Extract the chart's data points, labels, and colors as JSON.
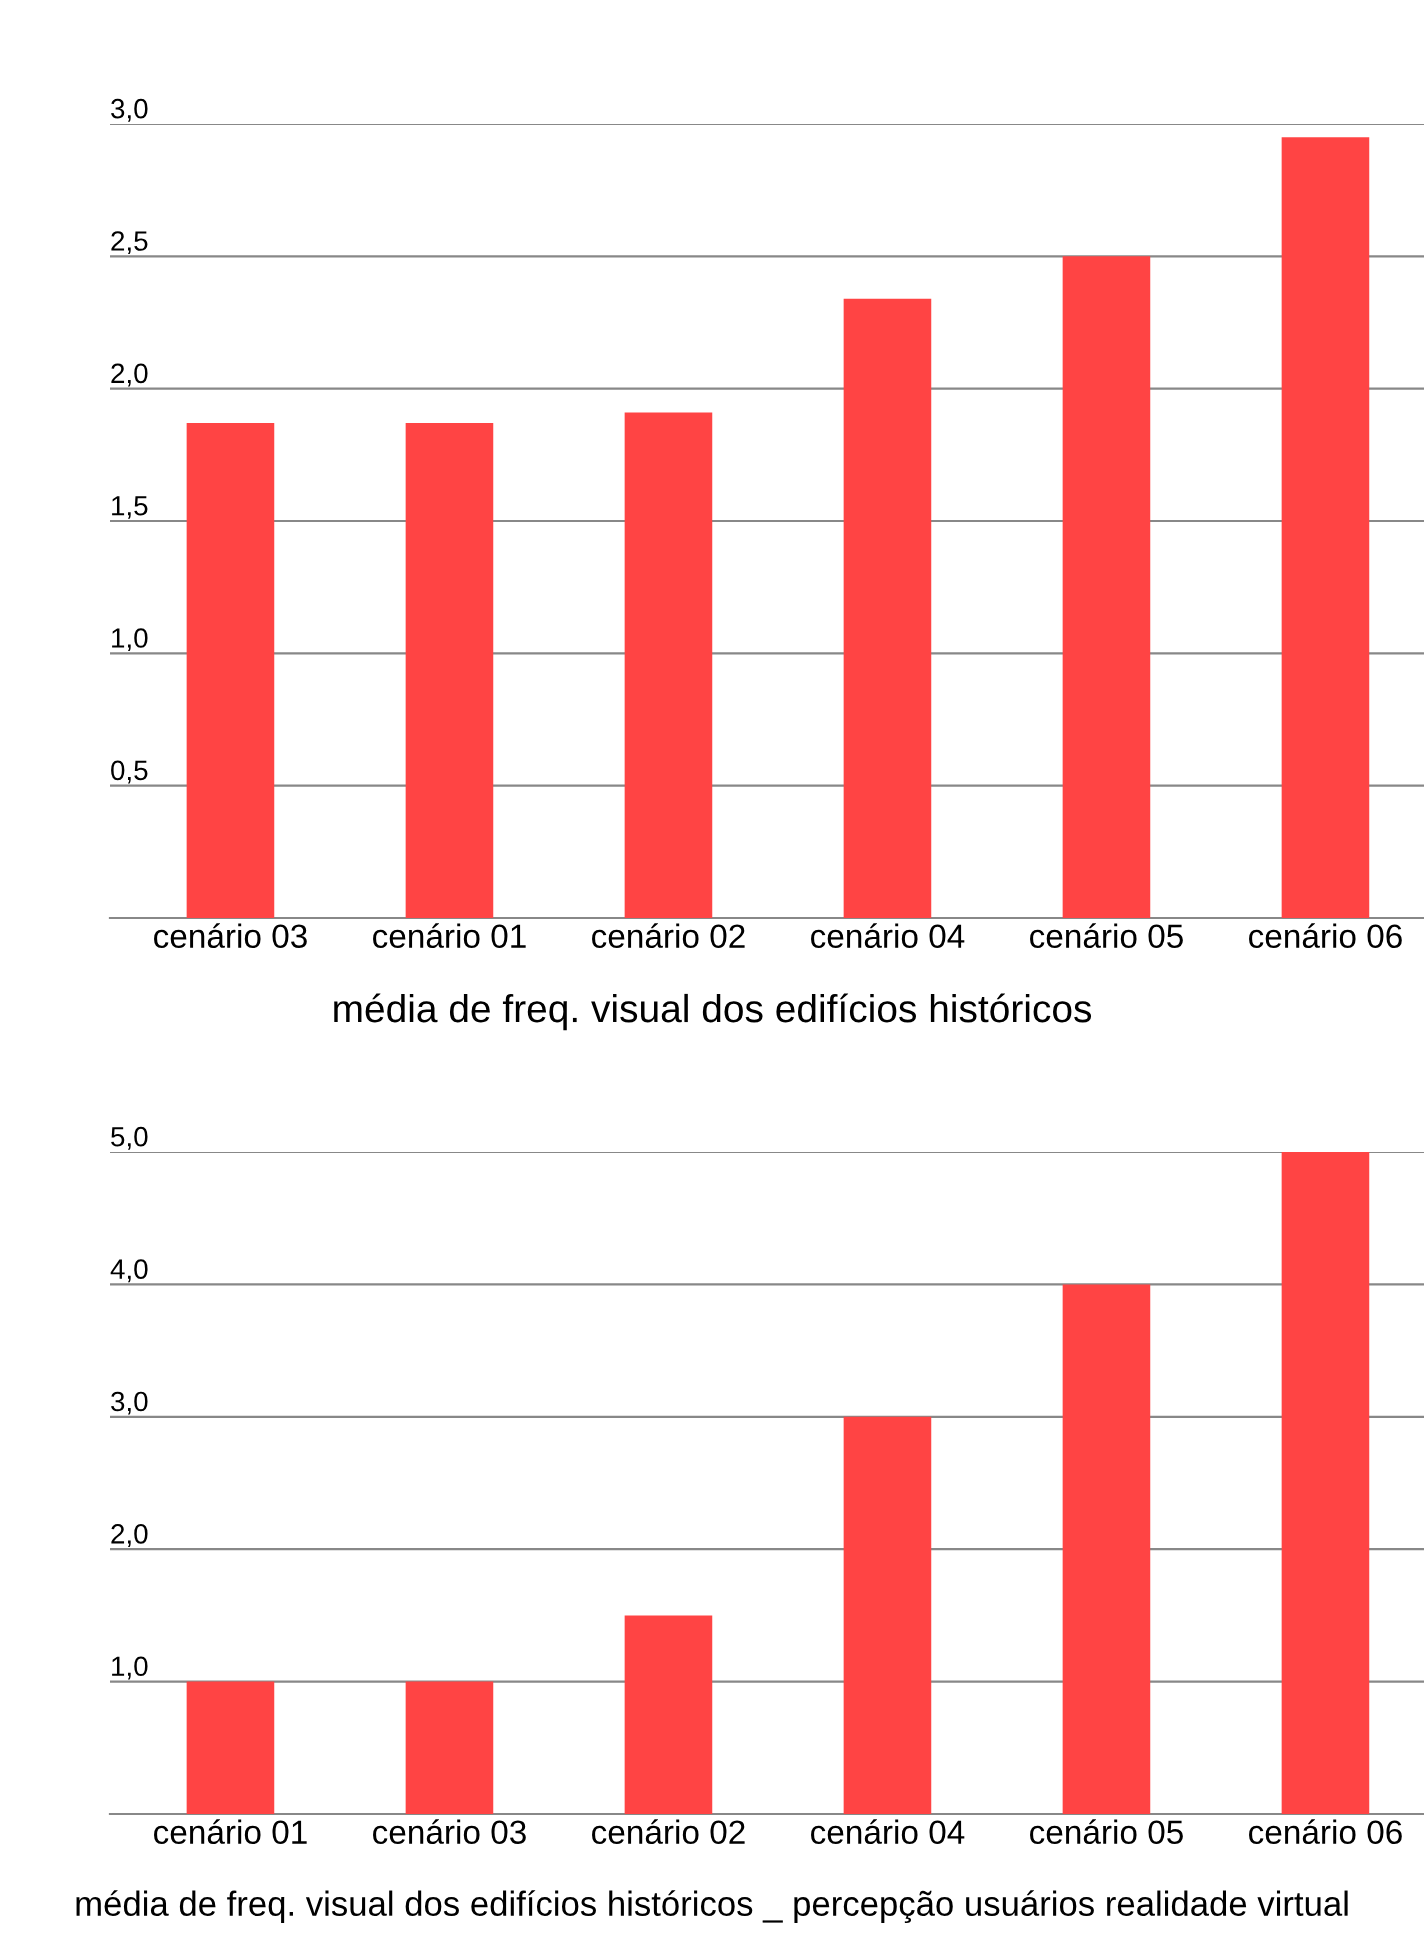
{
  "chart_data": [
    {
      "type": "bar",
      "categories": [
        "cenário 03",
        "cenário 01",
        "cenário 02",
        "cenário 04",
        "cenário 05",
        "cenário 06"
      ],
      "values": [
        1.87,
        1.87,
        1.91,
        2.34,
        2.5,
        2.95
      ],
      "color": "#ff4444",
      "xlabel": "média de freq. visual dos edifícios históricos",
      "ylim": [
        0,
        3.0
      ],
      "yticks": [
        {
          "value": 0.5,
          "label": "0,5"
        },
        {
          "value": 1.0,
          "label": "1,0"
        },
        {
          "value": 1.5,
          "label": "1,5"
        },
        {
          "value": 2.0,
          "label": "2,0"
        },
        {
          "value": 2.5,
          "label": "2,5"
        },
        {
          "value": 3.0,
          "label": "3,0"
        }
      ],
      "grid": "y",
      "legend": false
    },
    {
      "type": "bar",
      "categories": [
        "cenário 01",
        "cenário 03",
        "cenário 02",
        "cenário 04",
        "cenário 05",
        "cenário 06"
      ],
      "values": [
        1.0,
        1.0,
        1.5,
        3.0,
        4.0,
        5.0
      ],
      "color": "#ff4444",
      "xlabel": "média de freq. visual dos edifícios históricos _ percepção usuários realidade virtual",
      "ylim": [
        0,
        5.0
      ],
      "yticks": [
        {
          "value": 1.0,
          "label": "1,0"
        },
        {
          "value": 2.0,
          "label": "2,0"
        },
        {
          "value": 3.0,
          "label": "3,0"
        },
        {
          "value": 4.0,
          "label": "4,0"
        },
        {
          "value": 5.0,
          "label": "5,0"
        }
      ],
      "grid": "y",
      "legend": false
    }
  ]
}
